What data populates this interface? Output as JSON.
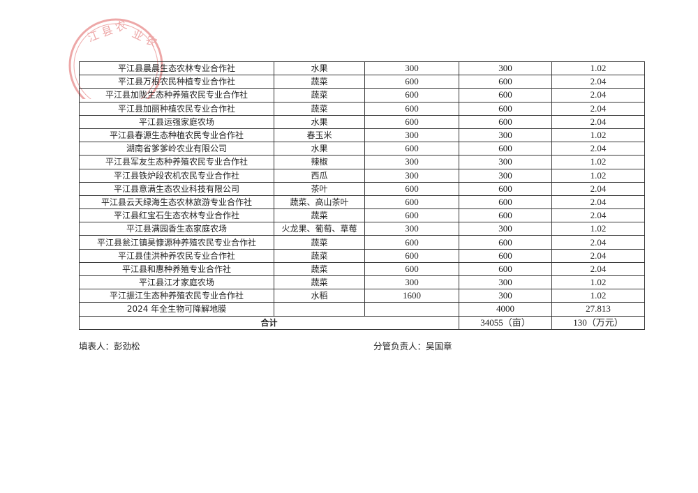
{
  "stamp": {
    "text": "江县农业农",
    "color": "#e06060"
  },
  "rows": [
    [
      "平江县晨晨生态农林专业合作社",
      "水果",
      "300",
      "300",
      "1.02"
    ],
    [
      "平江县万根农民种植专业合作社",
      "蔬菜",
      "600",
      "600",
      "2.04"
    ],
    [
      "平江县加陇生态种养殖农民专业合作社",
      "蔬菜",
      "600",
      "600",
      "2.04"
    ],
    [
      "平江县加丽种植农民专业合作社",
      "蔬菜",
      "600",
      "600",
      "2.04"
    ],
    [
      "平江县运强家庭农场",
      "水果",
      "600",
      "600",
      "2.04"
    ],
    [
      "平江县春源生态种植农民专业合作社",
      "春玉米",
      "300",
      "300",
      "1.02"
    ],
    [
      "湖南省爹爹岭农业有限公司",
      "水果",
      "600",
      "600",
      "2.04"
    ],
    [
      "平江县军友生态种养殖农民专业合作社",
      "辣椒",
      "300",
      "300",
      "1.02"
    ],
    [
      "平江县铁炉段农机农民专业合作社",
      "西瓜",
      "300",
      "300",
      "1.02"
    ],
    [
      "平江县意满生态农业科技有限公司",
      "茶叶",
      "600",
      "600",
      "2.04"
    ],
    [
      "平江县云天绿海生态农林旅游专业合作社",
      "蔬菜、高山茶叶",
      "600",
      "600",
      "2.04"
    ],
    [
      "平江县红宝石生态农林专业合作社",
      "蔬菜",
      "600",
      "600",
      "2.04"
    ],
    [
      "平江县满园香生态家庭农场",
      "火龙果、葡萄、草莓",
      "300",
      "300",
      "1.02"
    ],
    [
      "平江县瓮江镇昊慷源种养殖农民专业合作社",
      "蔬菜",
      "600",
      "600",
      "2.04"
    ],
    [
      "平江县佳洪种养农民专业合作社",
      "蔬菜",
      "600",
      "600",
      "2.04"
    ],
    [
      "平江县和惠种养殖专业合作社",
      "蔬菜",
      "600",
      "600",
      "2.04"
    ],
    [
      "平江县江才家庭农场",
      "蔬菜",
      "300",
      "300",
      "1.02"
    ],
    [
      "平江振江生态种养殖农民专业合作社",
      "水稻",
      "1600",
      "300",
      "1.02"
    ],
    [
      "2024 年全生物可降解地膜",
      "",
      "",
      "4000",
      "27.813"
    ]
  ],
  "total": {
    "label": "合计",
    "area": "34055（亩）",
    "amount": "130（万元）"
  },
  "footer": {
    "filler": "填表人：彭劲松",
    "supervisor": "分管负责人：吴国章"
  }
}
